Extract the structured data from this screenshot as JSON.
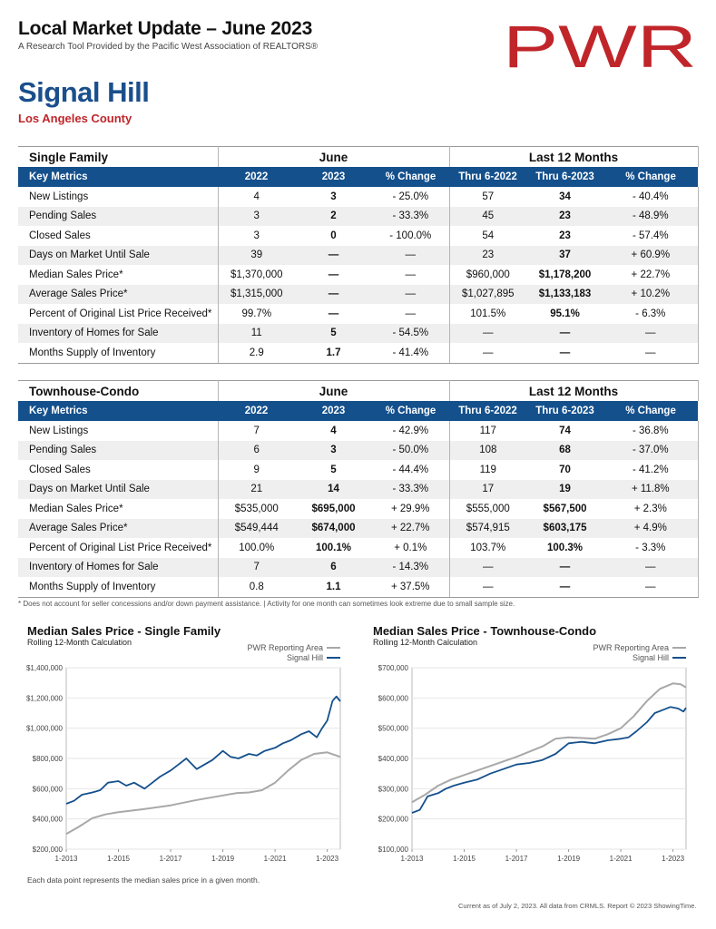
{
  "header": {
    "title": "Local Market Update – June 2023",
    "subtitle": "A Research Tool Provided by the Pacific West Association of REALTORS®",
    "logo_text": "PWR",
    "area": "Signal Hill",
    "county": "Los Angeles County"
  },
  "tables": [
    {
      "category": "Single Family",
      "group_month": "June",
      "group_year": "Last 12 Months",
      "headers": [
        "Key Metrics",
        "2022",
        "2023",
        "% Change",
        "Thru 6-2022",
        "Thru 6-2023",
        "% Change"
      ],
      "rows": [
        [
          "New Listings",
          "4",
          "3",
          "- 25.0%",
          "57",
          "34",
          "- 40.4%"
        ],
        [
          "Pending Sales",
          "3",
          "2",
          "- 33.3%",
          "45",
          "23",
          "- 48.9%"
        ],
        [
          "Closed Sales",
          "3",
          "0",
          "- 100.0%",
          "54",
          "23",
          "- 57.4%"
        ],
        [
          "Days on Market Until Sale",
          "39",
          "—",
          "—",
          "23",
          "37",
          "+ 60.9%"
        ],
        [
          "Median Sales Price*",
          "$1,370,000",
          "—",
          "—",
          "$960,000",
          "$1,178,200",
          "+ 22.7%"
        ],
        [
          "Average Sales Price*",
          "$1,315,000",
          "—",
          "—",
          "$1,027,895",
          "$1,133,183",
          "+ 10.2%"
        ],
        [
          "Percent of Original List Price Received*",
          "99.7%",
          "—",
          "—",
          "101.5%",
          "95.1%",
          "- 6.3%"
        ],
        [
          "Inventory of Homes for Sale",
          "11",
          "5",
          "- 54.5%",
          "—",
          "—",
          "—"
        ],
        [
          "Months Supply of Inventory",
          "2.9",
          "1.7",
          "- 41.4%",
          "—",
          "—",
          "—"
        ]
      ]
    },
    {
      "category": "Townhouse-Condo",
      "group_month": "June",
      "group_year": "Last 12 Months",
      "headers": [
        "Key Metrics",
        "2022",
        "2023",
        "% Change",
        "Thru 6-2022",
        "Thru 6-2023",
        "% Change"
      ],
      "rows": [
        [
          "New Listings",
          "7",
          "4",
          "- 42.9%",
          "117",
          "74",
          "- 36.8%"
        ],
        [
          "Pending Sales",
          "6",
          "3",
          "- 50.0%",
          "108",
          "68",
          "- 37.0%"
        ],
        [
          "Closed Sales",
          "9",
          "5",
          "- 44.4%",
          "119",
          "70",
          "- 41.2%"
        ],
        [
          "Days on Market Until Sale",
          "21",
          "14",
          "- 33.3%",
          "17",
          "19",
          "+ 11.8%"
        ],
        [
          "Median Sales Price*",
          "$535,000",
          "$695,000",
          "+ 29.9%",
          "$555,000",
          "$567,500",
          "+ 2.3%"
        ],
        [
          "Average Sales Price*",
          "$549,444",
          "$674,000",
          "+ 22.7%",
          "$574,915",
          "$603,175",
          "+ 4.9%"
        ],
        [
          "Percent of Original List Price Received*",
          "100.0%",
          "100.1%",
          "+ 0.1%",
          "103.7%",
          "100.3%",
          "- 3.3%"
        ],
        [
          "Inventory of Homes for Sale",
          "7",
          "6",
          "- 14.3%",
          "—",
          "—",
          "—"
        ],
        [
          "Months Supply of Inventory",
          "0.8",
          "1.1",
          "+ 37.5%",
          "—",
          "—",
          "—"
        ]
      ]
    }
  ],
  "footnote": "* Does not account for seller concessions and/or down payment assistance. | Activity for one month can sometimes look extreme due to small sample size.",
  "chart_note": "Each data point represents the median sales price in a given month.",
  "credit": "Current as of July 2, 2023. All data from CRMLS. Report © 2023 ShowingTime.",
  "colors": {
    "navy": "#14508c",
    "area_blue": "#1a4f8c",
    "red": "#c0252a",
    "pwr_gray": "#a8a8a8"
  },
  "chart_data": [
    {
      "type": "line",
      "title": "Median Sales Price - Single Family",
      "subtitle": "Rolling 12-Month Calculation",
      "x_ticks": [
        "1-2013",
        "1-2015",
        "1-2017",
        "1-2019",
        "1-2021",
        "1-2023"
      ],
      "x_range": [
        2013.0,
        2023.5
      ],
      "y_ticks": [
        "$200,000",
        "$400,000",
        "$600,000",
        "$800,000",
        "$1,000,000",
        "$1,200,000",
        "$1,400,000"
      ],
      "ylim": [
        200000,
        1400000
      ],
      "series": [
        {
          "name": "PWR Reporting Area",
          "color": "#a8a8a8",
          "x": [
            2013.0,
            2013.5,
            2014.0,
            2014.5,
            2015.0,
            2016.0,
            2017.0,
            2018.0,
            2019.0,
            2019.5,
            2020.0,
            2020.5,
            2021.0,
            2021.5,
            2022.0,
            2022.5,
            2023.0,
            2023.5
          ],
          "y": [
            300000,
            350000,
            405000,
            430000,
            445000,
            465000,
            490000,
            525000,
            555000,
            570000,
            575000,
            590000,
            640000,
            720000,
            790000,
            830000,
            840000,
            810000
          ]
        },
        {
          "name": "Signal Hill",
          "color": "#14508c",
          "x": [
            2013.0,
            2013.3,
            2013.6,
            2014.0,
            2014.3,
            2014.6,
            2015.0,
            2015.3,
            2015.6,
            2016.0,
            2016.3,
            2016.6,
            2017.0,
            2017.3,
            2017.6,
            2018.0,
            2018.3,
            2018.6,
            2019.0,
            2019.3,
            2019.6,
            2020.0,
            2020.3,
            2020.6,
            2021.0,
            2021.3,
            2021.6,
            2022.0,
            2022.3,
            2022.6,
            2022.8,
            2023.0,
            2023.2,
            2023.35,
            2023.5
          ],
          "y": [
            500000,
            520000,
            560000,
            575000,
            590000,
            640000,
            650000,
            620000,
            640000,
            600000,
            640000,
            680000,
            720000,
            760000,
            800000,
            730000,
            760000,
            790000,
            850000,
            810000,
            800000,
            830000,
            820000,
            850000,
            870000,
            900000,
            920000,
            960000,
            980000,
            940000,
            1000000,
            1050000,
            1180000,
            1210000,
            1178200
          ]
        }
      ]
    },
    {
      "type": "line",
      "title": "Median Sales Price - Townhouse-Condo",
      "subtitle": "Rolling 12-Month Calculation",
      "x_ticks": [
        "1-2013",
        "1-2015",
        "1-2017",
        "1-2019",
        "1-2021",
        "1-2023"
      ],
      "x_range": [
        2013.0,
        2023.5
      ],
      "y_ticks": [
        "$100,000",
        "$200,000",
        "$300,000",
        "$400,000",
        "$500,000",
        "$600,000",
        "$700,000"
      ],
      "ylim": [
        100000,
        700000
      ],
      "series": [
        {
          "name": "PWR Reporting Area",
          "color": "#a8a8a8",
          "x": [
            2013.0,
            2013.5,
            2014.0,
            2014.5,
            2015.0,
            2016.0,
            2017.0,
            2018.0,
            2018.5,
            2019.0,
            2020.0,
            2020.5,
            2021.0,
            2021.5,
            2022.0,
            2022.5,
            2023.0,
            2023.3,
            2023.5
          ],
          "y": [
            255000,
            280000,
            310000,
            330000,
            345000,
            375000,
            405000,
            440000,
            465000,
            470000,
            465000,
            480000,
            500000,
            540000,
            590000,
            630000,
            648000,
            645000,
            635000
          ]
        },
        {
          "name": "Signal Hill",
          "color": "#14508c",
          "x": [
            2013.0,
            2013.3,
            2013.6,
            2014.0,
            2014.3,
            2014.6,
            2015.0,
            2015.5,
            2016.0,
            2016.5,
            2017.0,
            2017.5,
            2018.0,
            2018.5,
            2019.0,
            2019.5,
            2020.0,
            2020.5,
            2021.0,
            2021.3,
            2021.6,
            2022.0,
            2022.3,
            2022.6,
            2022.9,
            2023.2,
            2023.4,
            2023.5
          ],
          "y": [
            220000,
            230000,
            275000,
            285000,
            300000,
            310000,
            320000,
            330000,
            350000,
            365000,
            380000,
            385000,
            395000,
            415000,
            450000,
            455000,
            450000,
            460000,
            465000,
            470000,
            490000,
            520000,
            550000,
            560000,
            570000,
            565000,
            555000,
            567500
          ]
        }
      ]
    }
  ]
}
